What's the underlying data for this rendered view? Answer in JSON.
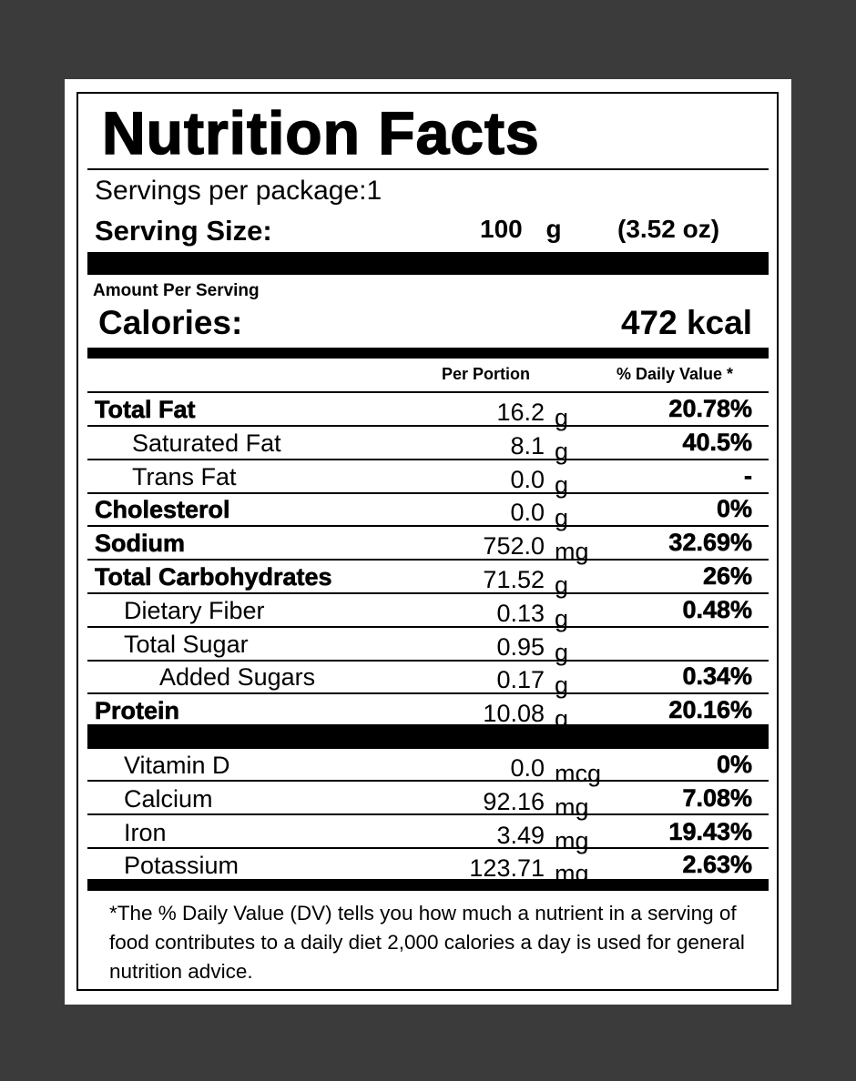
{
  "title": "Nutrition Facts",
  "servings_per_package": "Servings per package:1",
  "serving_size": {
    "label": "Serving Size:",
    "amount": "100",
    "unit": "g",
    "alt": "(3.52 oz)"
  },
  "amount_per_serving": "Amount Per Serving",
  "calories": {
    "label": "Calories:",
    "value": "472 kcal"
  },
  "columns": {
    "per_portion": "Per Portion",
    "daily_value": "% Daily Value *"
  },
  "nutrients": [
    {
      "name": "Total Fat",
      "amount": "16.2",
      "unit": "g",
      "dv": "20.78%",
      "bold": true,
      "indent": 0
    },
    {
      "name": "Saturated Fat",
      "amount": "8.1",
      "unit": "g",
      "dv": "40.5%",
      "bold": false,
      "indent": 2
    },
    {
      "name": "Trans Fat",
      "amount": "0.0",
      "unit": "g",
      "dv": "-",
      "bold": false,
      "indent": 2
    },
    {
      "name": "Cholesterol",
      "amount": "0.0",
      "unit": "g",
      "dv": "0%",
      "bold": true,
      "indent": 0
    },
    {
      "name": "Sodium",
      "amount": "752.0",
      "unit": "mg",
      "dv": "32.69%",
      "bold": true,
      "indent": 0
    },
    {
      "name": "Total Carbohydrates",
      "amount": "71.52",
      "unit": "g",
      "dv": "26%",
      "bold": true,
      "indent": 0
    },
    {
      "name": "Dietary Fiber",
      "amount": "0.13",
      "unit": "g",
      "dv": "0.48%",
      "bold": false,
      "indent": 1
    },
    {
      "name": "Total Sugar",
      "amount": "0.95",
      "unit": "g",
      "dv": "",
      "bold": false,
      "indent": 1
    },
    {
      "name": "Added Sugars",
      "amount": "0.17",
      "unit": "g",
      "dv": "0.34%",
      "bold": false,
      "indent": 3
    },
    {
      "name": "Protein",
      "amount": "10.08",
      "unit": "g",
      "dv": "20.16%",
      "bold": true,
      "indent": 0
    }
  ],
  "vitamins": [
    {
      "name": "Vitamin D",
      "amount": "0.0",
      "unit": "mcg",
      "dv": "0%"
    },
    {
      "name": "Calcium",
      "amount": "92.16",
      "unit": "mg",
      "dv": "7.08%"
    },
    {
      "name": "Iron",
      "amount": "3.49",
      "unit": "mg",
      "dv": "19.43%"
    },
    {
      "name": "Potassium",
      "amount": "123.71",
      "unit": "mg",
      "dv": "2.63%"
    }
  ],
  "footnote": "*The % Daily Value (DV) tells you how much a nutrient in a serving of food contributes to a daily diet 2,000 calories a day is used for general nutrition advice."
}
